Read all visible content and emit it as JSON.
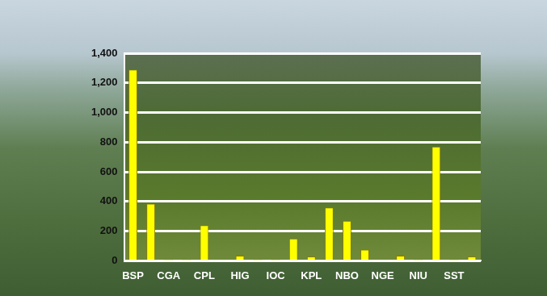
{
  "chart_data": {
    "type": "bar",
    "categories": [
      "BSP",
      null,
      "CGA",
      null,
      "CPL",
      null,
      "HIG",
      null,
      "IOC",
      null,
      "KPL",
      null,
      "NBO",
      null,
      "NGE",
      null,
      "NIU",
      null,
      "SST",
      null
    ],
    "values": [
      1290,
      385,
      5,
      5,
      240,
      8,
      35,
      5,
      5,
      150,
      30,
      360,
      270,
      75,
      8,
      35,
      5,
      770,
      5,
      30
    ],
    "color": "#ffff00",
    "ylim": [
      0,
      1400
    ],
    "yticks": [
      0,
      200,
      400,
      600,
      800,
      {
        "value": 1000,
        "label": "1,000"
      },
      {
        "value": 1200,
        "label": "1,200"
      },
      {
        "value": 1400,
        "label": "1,400"
      }
    ],
    "grid": true
  }
}
